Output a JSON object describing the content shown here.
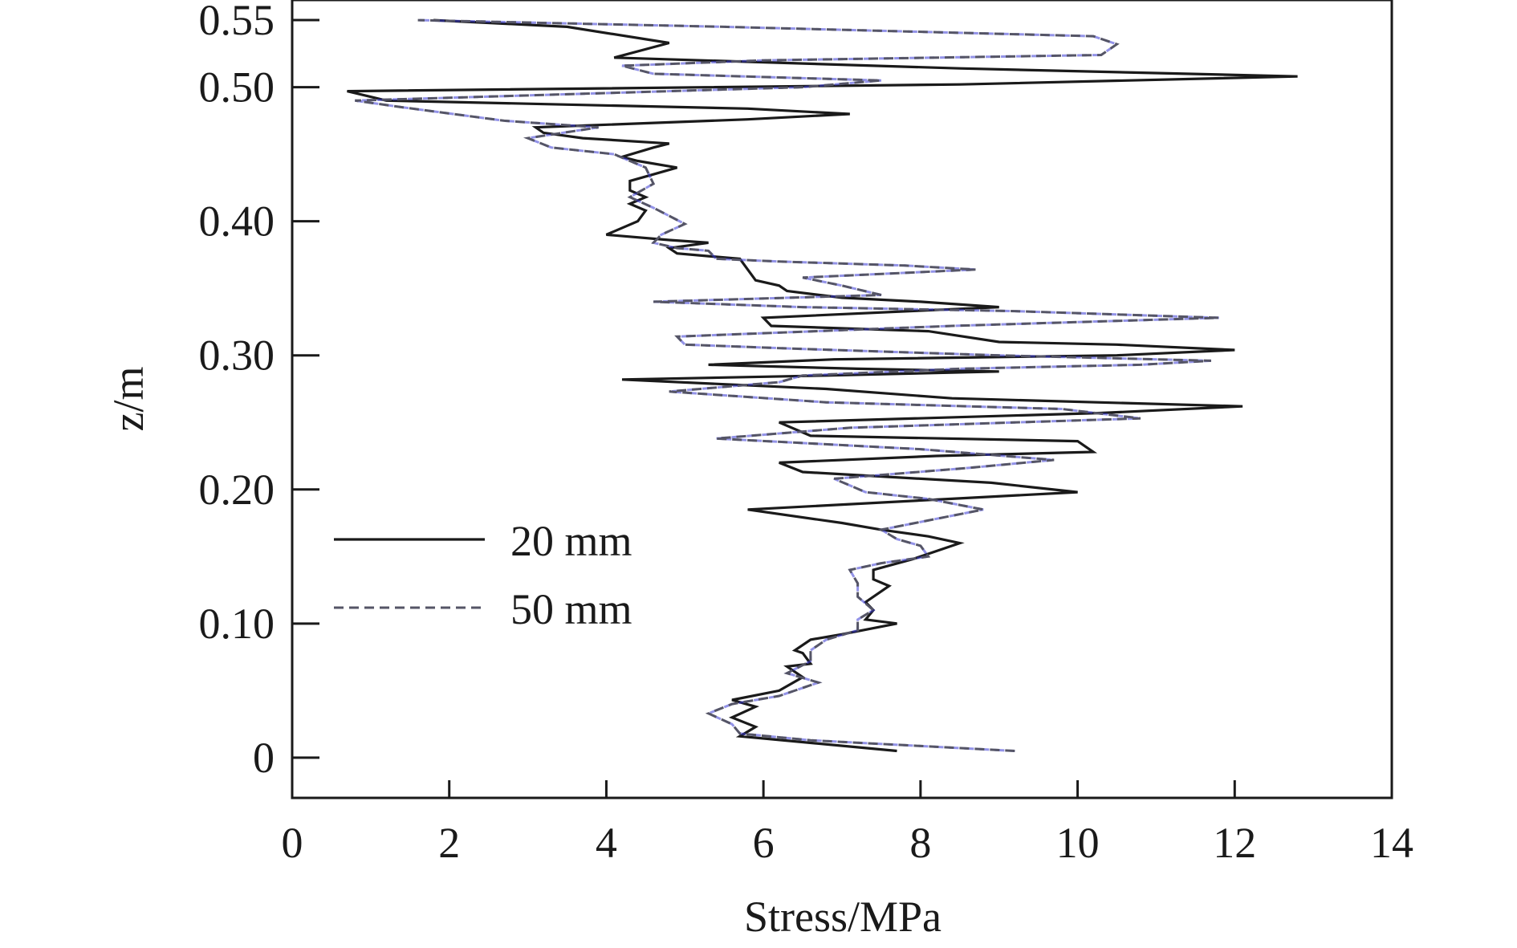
{
  "chart_data": {
    "type": "line",
    "xlabel": "Stress/MPa",
    "ylabel": "z/m",
    "xlim": [
      0,
      14
    ],
    "ylim": [
      -0.03,
      0.565
    ],
    "xticks": [
      0,
      2,
      4,
      6,
      8,
      10,
      12,
      14
    ],
    "xtick_labels": [
      "0",
      "2",
      "4",
      "6",
      "8",
      "10",
      "12",
      "14"
    ],
    "yticks": [
      0,
      0.1,
      0.2,
      0.3,
      0.4,
      0.5,
      0.55
    ],
    "ytick_labels": [
      "0",
      "0.10",
      "0.20",
      "0.30",
      "0.40",
      "0.50",
      "0.55"
    ],
    "grid": false,
    "legend_position": "center-left",
    "series": [
      {
        "name": "20 mm",
        "style": "solid",
        "color": "#1a1a1a",
        "points": [
          [
            7.7,
            0.005
          ],
          [
            5.7,
            0.016
          ],
          [
            5.9,
            0.023
          ],
          [
            5.6,
            0.03
          ],
          [
            5.9,
            0.038
          ],
          [
            5.6,
            0.043
          ],
          [
            6.2,
            0.05
          ],
          [
            6.5,
            0.06
          ],
          [
            6.3,
            0.068
          ],
          [
            6.6,
            0.07
          ],
          [
            6.5,
            0.078
          ],
          [
            6.4,
            0.08
          ],
          [
            6.6,
            0.088
          ],
          [
            7.0,
            0.092
          ],
          [
            7.7,
            0.1
          ],
          [
            7.3,
            0.103
          ],
          [
            7.4,
            0.11
          ],
          [
            7.3,
            0.116
          ],
          [
            7.6,
            0.128
          ],
          [
            7.4,
            0.133
          ],
          [
            7.4,
            0.14
          ],
          [
            7.9,
            0.148
          ],
          [
            8.5,
            0.16
          ],
          [
            8.1,
            0.165
          ],
          [
            7.5,
            0.17
          ],
          [
            7.0,
            0.175
          ],
          [
            5.8,
            0.185
          ],
          [
            10.0,
            0.198
          ],
          [
            8.9,
            0.205
          ],
          [
            6.5,
            0.213
          ],
          [
            6.2,
            0.22
          ],
          [
            8.2,
            0.225
          ],
          [
            10.2,
            0.228
          ],
          [
            10.0,
            0.236
          ],
          [
            6.6,
            0.24
          ],
          [
            6.2,
            0.25
          ],
          [
            10.3,
            0.257
          ],
          [
            12.1,
            0.262
          ],
          [
            8.4,
            0.268
          ],
          [
            6.8,
            0.275
          ],
          [
            4.2,
            0.282
          ],
          [
            6.8,
            0.285
          ],
          [
            9.0,
            0.288
          ],
          [
            7.2,
            0.29
          ],
          [
            5.3,
            0.293
          ],
          [
            6.9,
            0.297
          ],
          [
            10.5,
            0.3
          ],
          [
            12.0,
            0.304
          ],
          [
            10.5,
            0.308
          ],
          [
            9.0,
            0.31
          ],
          [
            8.1,
            0.318
          ],
          [
            6.1,
            0.322
          ],
          [
            6.0,
            0.328
          ],
          [
            9.0,
            0.336
          ],
          [
            8.0,
            0.34
          ],
          [
            7.0,
            0.343
          ],
          [
            6.3,
            0.348
          ],
          [
            6.2,
            0.352
          ],
          [
            5.9,
            0.356
          ],
          [
            5.8,
            0.364
          ],
          [
            5.7,
            0.372
          ],
          [
            5.3,
            0.374
          ],
          [
            4.9,
            0.376
          ],
          [
            4.8,
            0.38
          ],
          [
            5.3,
            0.384
          ],
          [
            4.8,
            0.386
          ],
          [
            4.0,
            0.39
          ],
          [
            4.4,
            0.4
          ],
          [
            4.5,
            0.408
          ],
          [
            4.3,
            0.413
          ],
          [
            4.5,
            0.418
          ],
          [
            4.3,
            0.423
          ],
          [
            4.3,
            0.43
          ],
          [
            4.6,
            0.435
          ],
          [
            4.9,
            0.44
          ],
          [
            4.4,
            0.445
          ],
          [
            4.2,
            0.448
          ],
          [
            4.6,
            0.455
          ],
          [
            4.8,
            0.458
          ],
          [
            3.7,
            0.462
          ],
          [
            3.2,
            0.466
          ],
          [
            3.1,
            0.47
          ],
          [
            5.8,
            0.476
          ],
          [
            7.1,
            0.48
          ],
          [
            5.8,
            0.484
          ],
          [
            1.2,
            0.49
          ],
          [
            0.7,
            0.497
          ],
          [
            8.5,
            0.502
          ],
          [
            12.8,
            0.508
          ],
          [
            8.5,
            0.514
          ],
          [
            4.1,
            0.522
          ],
          [
            4.8,
            0.533
          ],
          [
            3.5,
            0.545
          ],
          [
            1.8,
            0.55
          ]
        ]
      },
      {
        "name": "50 mm",
        "style": "dashed",
        "color": "#555566",
        "accent_color": "#3b3bd6",
        "points": [
          [
            9.2,
            0.005
          ],
          [
            6.6,
            0.013
          ],
          [
            5.7,
            0.018
          ],
          [
            5.6,
            0.025
          ],
          [
            5.3,
            0.033
          ],
          [
            5.6,
            0.04
          ],
          [
            6.2,
            0.046
          ],
          [
            6.7,
            0.056
          ],
          [
            6.3,
            0.063
          ],
          [
            6.6,
            0.072
          ],
          [
            6.6,
            0.08
          ],
          [
            6.8,
            0.088
          ],
          [
            7.2,
            0.095
          ],
          [
            7.2,
            0.103
          ],
          [
            7.4,
            0.11
          ],
          [
            7.2,
            0.12
          ],
          [
            7.2,
            0.13
          ],
          [
            7.1,
            0.14
          ],
          [
            7.5,
            0.145
          ],
          [
            8.1,
            0.15
          ],
          [
            8.0,
            0.158
          ],
          [
            7.7,
            0.163
          ],
          [
            7.5,
            0.17
          ],
          [
            8.8,
            0.185
          ],
          [
            8.1,
            0.193
          ],
          [
            7.3,
            0.198
          ],
          [
            6.9,
            0.208
          ],
          [
            8.6,
            0.216
          ],
          [
            9.7,
            0.222
          ],
          [
            8.0,
            0.23
          ],
          [
            5.4,
            0.238
          ],
          [
            7.1,
            0.246
          ],
          [
            10.8,
            0.253
          ],
          [
            9.8,
            0.26
          ],
          [
            6.8,
            0.265
          ],
          [
            4.8,
            0.273
          ],
          [
            6.2,
            0.28
          ],
          [
            6.5,
            0.285
          ],
          [
            8.5,
            0.29
          ],
          [
            10.8,
            0.293
          ],
          [
            11.7,
            0.296
          ],
          [
            9.0,
            0.3
          ],
          [
            6.4,
            0.305
          ],
          [
            5.0,
            0.308
          ],
          [
            4.9,
            0.314
          ],
          [
            8.4,
            0.322
          ],
          [
            11.8,
            0.328
          ],
          [
            9.2,
            0.333
          ],
          [
            6.5,
            0.336
          ],
          [
            4.6,
            0.34
          ],
          [
            7.5,
            0.345
          ],
          [
            7.0,
            0.352
          ],
          [
            6.5,
            0.358
          ],
          [
            8.7,
            0.364
          ],
          [
            7.8,
            0.367
          ],
          [
            6.2,
            0.37
          ],
          [
            5.4,
            0.372
          ],
          [
            5.3,
            0.378
          ],
          [
            4.9,
            0.38
          ],
          [
            4.6,
            0.384
          ],
          [
            4.7,
            0.39
          ],
          [
            5.0,
            0.398
          ],
          [
            4.6,
            0.41
          ],
          [
            4.3,
            0.418
          ],
          [
            4.6,
            0.428
          ],
          [
            4.5,
            0.44
          ],
          [
            4.1,
            0.45
          ],
          [
            3.3,
            0.455
          ],
          [
            3.0,
            0.462
          ],
          [
            3.9,
            0.47
          ],
          [
            2.7,
            0.475
          ],
          [
            1.4,
            0.485
          ],
          [
            0.8,
            0.49
          ],
          [
            6.5,
            0.5
          ],
          [
            7.5,
            0.505
          ],
          [
            4.6,
            0.51
          ],
          [
            4.2,
            0.516
          ],
          [
            6.0,
            0.52
          ],
          [
            10.3,
            0.524
          ],
          [
            10.5,
            0.532
          ],
          [
            10.2,
            0.538
          ],
          [
            5.5,
            0.545
          ],
          [
            1.6,
            0.55
          ]
        ]
      }
    ]
  }
}
